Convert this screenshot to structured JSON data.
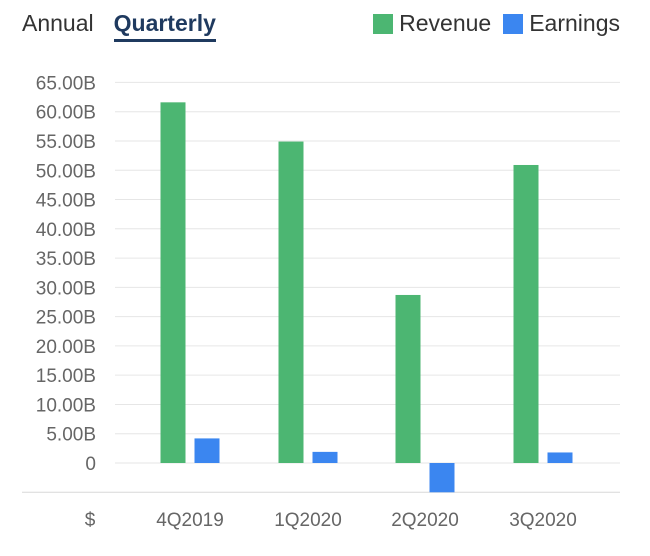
{
  "tabs": [
    {
      "label": "Annual",
      "active": false
    },
    {
      "label": "Quarterly",
      "active": true
    }
  ],
  "legend": [
    {
      "label": "Revenue",
      "color": "#4cb672"
    },
    {
      "label": "Earnings",
      "color": "#3b86f0"
    }
  ],
  "chart_data": {
    "type": "bar",
    "categories": [
      "4Q2019",
      "1Q2020",
      "2Q2020",
      "3Q2020"
    ],
    "series": [
      {
        "name": "Revenue",
        "color": "#4cb672",
        "values": [
          61.6,
          54.9,
          28.7,
          50.9
        ]
      },
      {
        "name": "Earnings",
        "color": "#3b86f0",
        "values": [
          4.2,
          1.9,
          -5.0,
          1.8
        ]
      }
    ],
    "y_ticks": [
      0,
      5,
      10,
      15,
      20,
      25,
      30,
      35,
      40,
      45,
      50,
      55,
      60,
      65
    ],
    "y_tick_labels": [
      "0",
      "5.00B",
      "10.00B",
      "15.00B",
      "20.00B",
      "25.00B",
      "30.00B",
      "35.00B",
      "40.00B",
      "45.00B",
      "50.00B",
      "55.00B",
      "60.00B",
      "65.00B"
    ],
    "ylim": [
      -5,
      65
    ],
    "currency_label": "$",
    "grid": true,
    "legend_position": "top-right",
    "title": "",
    "xlabel": "",
    "ylabel": ""
  }
}
